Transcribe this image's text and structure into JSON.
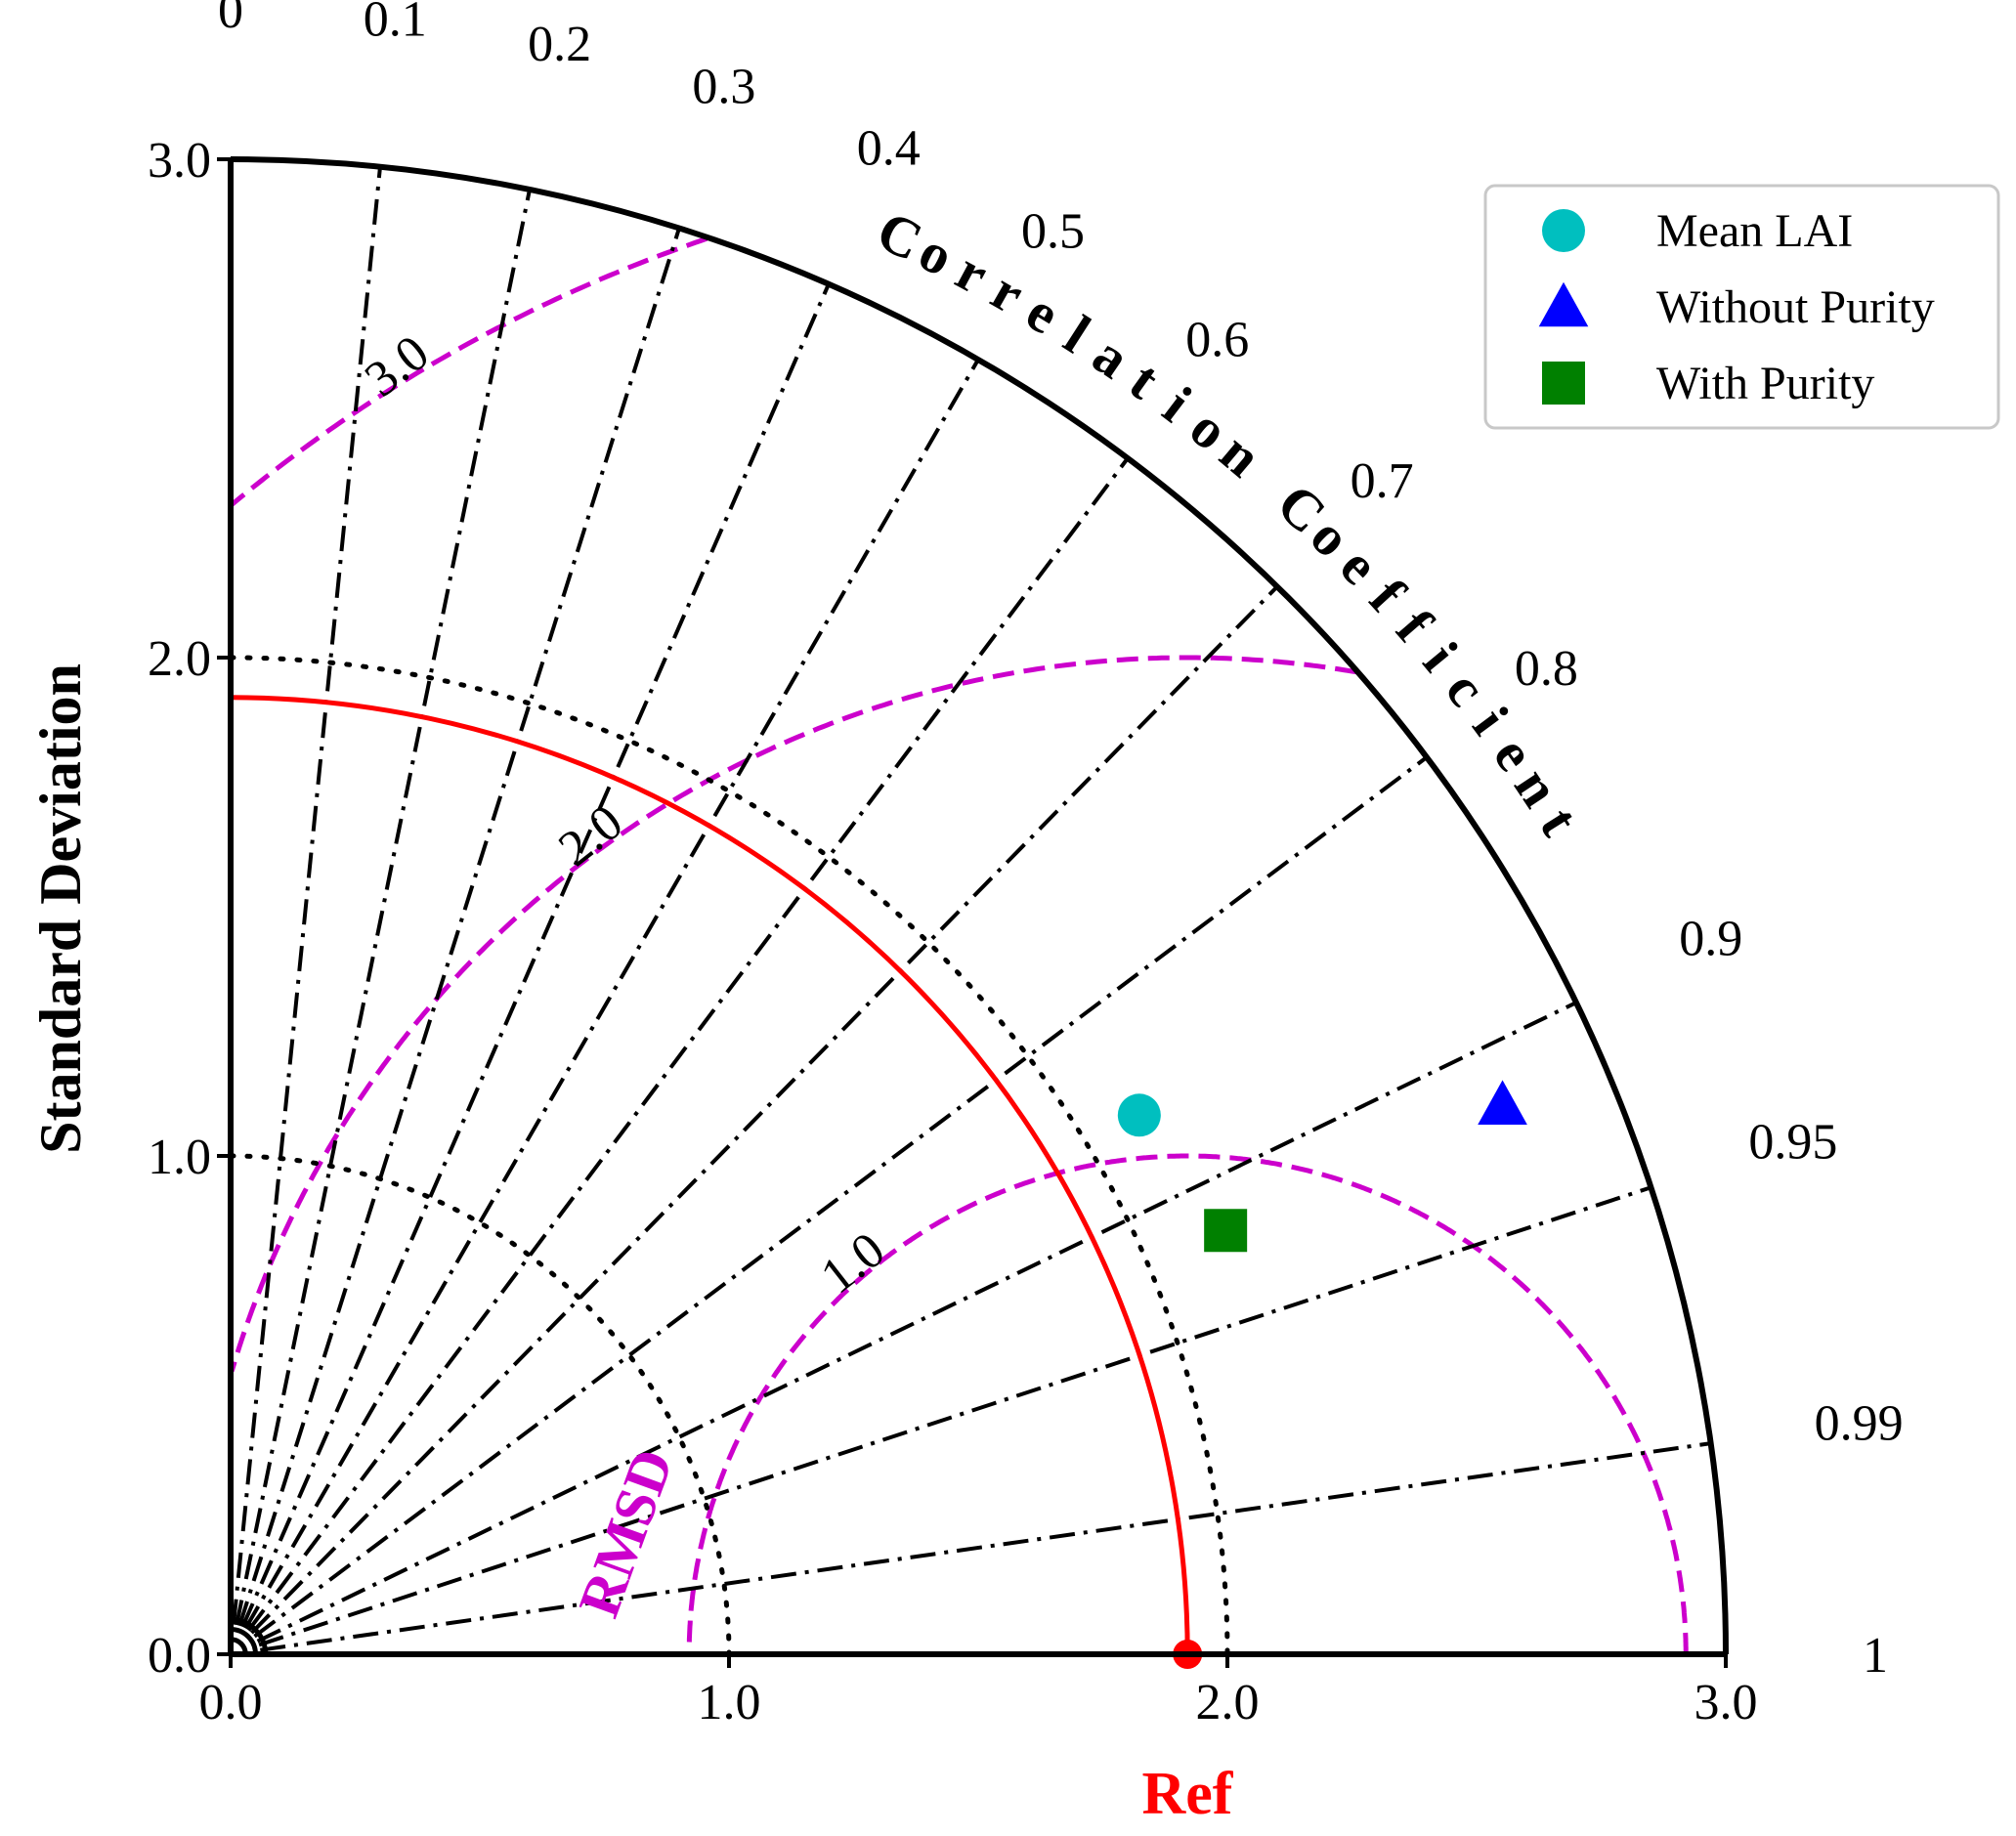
{
  "chart_data": {
    "type": "taylor",
    "std_axis": {
      "label": "Standard Deviation",
      "range": [
        0,
        3.0
      ],
      "ticks": [
        0.0,
        1.0,
        2.0,
        3.0
      ],
      "tick_labels": [
        "0.0",
        "1.0",
        "2.0",
        "3.0"
      ]
    },
    "correlation_axis": {
      "label": "Correlation Coefficient",
      "ticks": [
        0,
        0.1,
        0.2,
        0.3,
        0.4,
        0.5,
        0.6,
        0.7,
        0.8,
        0.9,
        0.95,
        0.99,
        1
      ],
      "tick_labels": [
        "0",
        "0.1",
        "0.2",
        "0.3",
        "0.4",
        "0.5",
        "0.6",
        "0.7",
        "0.8",
        "0.9",
        "0.95",
        "0.99",
        "1"
      ]
    },
    "reference": {
      "label": "Ref",
      "std": 1.92,
      "color": "#ff0000"
    },
    "rmsd": {
      "label": "RMSD",
      "contours": [
        1.0,
        2.0,
        3.0
      ],
      "contour_labels": [
        "1.0",
        "2.0",
        "3.0"
      ],
      "color": "#cc00cc"
    },
    "std_grid": [
      1.0,
      2.0
    ],
    "series": [
      {
        "name": "Mean LAI",
        "std": 2.12,
        "corr": 0.86,
        "marker": "circle",
        "color": "#00bfbf"
      },
      {
        "name": "Without Purity",
        "std": 2.78,
        "corr": 0.918,
        "marker": "triangle",
        "color": "#0000ff"
      },
      {
        "name": "With Purity",
        "std": 2.17,
        "corr": 0.92,
        "marker": "square",
        "color": "#008000"
      }
    ],
    "legend_position": "top-right"
  }
}
